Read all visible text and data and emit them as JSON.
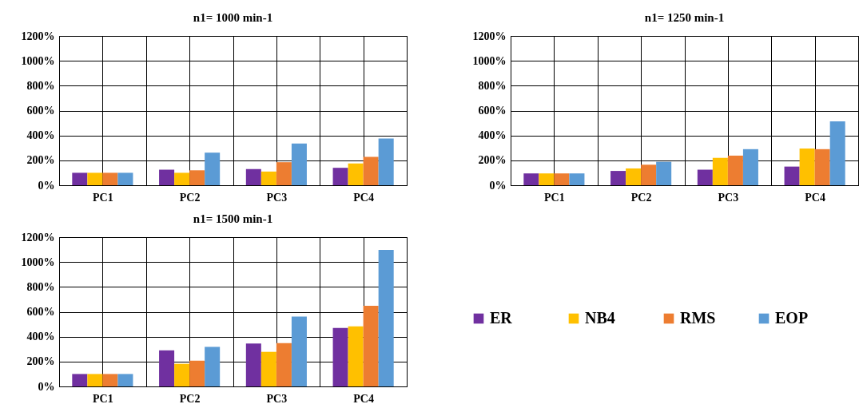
{
  "chart_data": [
    {
      "type": "bar",
      "title": "n1= 1000 min-1",
      "categories": [
        "PC1",
        "PC2",
        "PC3",
        "PC4"
      ],
      "series": [
        {
          "color": "#7030a0",
          "values": [
            100,
            125,
            130,
            140
          ]
        },
        {
          "color": "#ffc000",
          "values": [
            100,
            100,
            110,
            175
          ]
        },
        {
          "color": "#ed7d31",
          "values": [
            100,
            120,
            185,
            228
          ]
        },
        {
          "color": "#5b9bd5",
          "values": [
            100,
            262,
            335,
            375
          ]
        }
      ],
      "ylim": [
        0,
        1200
      ],
      "yticks": [
        {
          "value": 0,
          "label": "0%"
        },
        {
          "value": 200,
          "label": "200%"
        },
        {
          "value": 400,
          "label": "400%"
        },
        {
          "value": 600,
          "label": "600%"
        },
        {
          "value": 800,
          "label": "800%"
        },
        {
          "value": 1000,
          "label": "1000%"
        },
        {
          "value": 1200,
          "label": "1200%"
        }
      ],
      "grid": true
    },
    {
      "type": "bar",
      "title": "n1= 1250 min-1",
      "categories": [
        "PC1",
        "PC2",
        "PC3",
        "PC4"
      ],
      "series": [
        {
          "color": "#7030a0",
          "values": [
            95,
            115,
            125,
            150
          ]
        },
        {
          "color": "#ffc000",
          "values": [
            95,
            135,
            220,
            295
          ]
        },
        {
          "color": "#ed7d31",
          "values": [
            95,
            165,
            238,
            290
          ]
        },
        {
          "color": "#5b9bd5",
          "values": [
            95,
            188,
            290,
            513
          ]
        }
      ],
      "ylim": [
        0,
        1200
      ],
      "yticks": [
        {
          "value": 0,
          "label": "0%"
        },
        {
          "value": 200,
          "label": "200%"
        },
        {
          "value": 400,
          "label": "400%"
        },
        {
          "value": 600,
          "label": "600%"
        },
        {
          "value": 800,
          "label": "800%"
        },
        {
          "value": 1000,
          "label": "1000%"
        },
        {
          "value": 1200,
          "label": "1200%"
        }
      ],
      "grid": true
    },
    {
      "type": "bar",
      "title": "n1= 1500 min-1",
      "categories": [
        "PC1",
        "PC2",
        "PC3",
        "PC4"
      ],
      "series": [
        {
          "name": "ER",
          "color": "#7030a0",
          "values": [
            100,
            290,
            345,
            470
          ]
        },
        {
          "name": "NB4",
          "color": "#ffc000",
          "values": [
            100,
            182,
            278,
            483
          ]
        },
        {
          "name": "RMS",
          "color": "#ed7d31",
          "values": [
            100,
            207,
            348,
            648
          ]
        },
        {
          "name": "EOP",
          "color": "#5b9bd5",
          "values": [
            100,
            318,
            562,
            1098
          ]
        }
      ],
      "ylim": [
        0,
        1200
      ],
      "yticks": [
        {
          "value": 0,
          "label": "0%"
        },
        {
          "value": 200,
          "label": "200%"
        },
        {
          "value": 400,
          "label": "400%"
        },
        {
          "value": 600,
          "label": "600%"
        },
        {
          "value": 800,
          "label": "800%"
        },
        {
          "value": 1000,
          "label": "1000%"
        },
        {
          "value": 1200,
          "label": "1200%"
        }
      ],
      "grid": true,
      "legend": "right"
    }
  ]
}
